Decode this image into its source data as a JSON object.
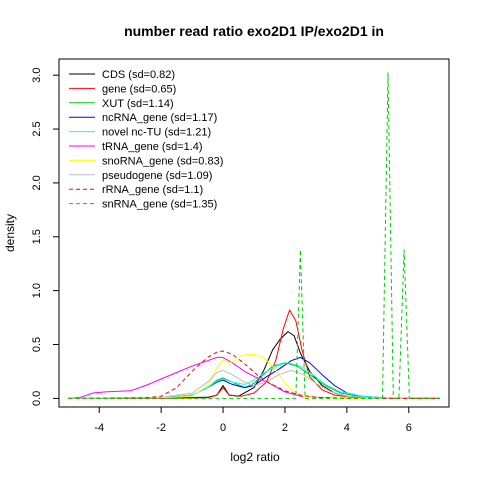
{
  "chart_data": {
    "type": "line",
    "title": "number read ratio exo2D1 IP/exo2D1 in",
    "xlabel": "log2 ratio",
    "ylabel": "density",
    "xlim": [
      -5.3,
      7.3
    ],
    "ylim": [
      -0.08,
      3.15
    ],
    "x_ticks": [
      -4,
      -2,
      0,
      2,
      4,
      6
    ],
    "x_tick_labels": [
      "-4",
      "-2",
      "0",
      "2",
      "4",
      "6"
    ],
    "y_ticks": [
      0.0,
      0.5,
      1.0,
      1.5,
      2.0,
      2.5,
      3.0
    ],
    "y_tick_labels": [
      "0.0",
      "0.5",
      "1.0",
      "1.5",
      "2.0",
      "2.5",
      "3.0"
    ],
    "grid": false,
    "legend_position": "top-left",
    "series": [
      {
        "name": "CDS (sd=0.82)",
        "color": "#000000",
        "dash": "solid",
        "points": [
          [
            -5,
            0
          ],
          [
            -3,
            0
          ],
          [
            -1.5,
            0.005
          ],
          [
            -0.5,
            0.01
          ],
          [
            -0.2,
            0.03
          ],
          [
            0,
            0.12
          ],
          [
            0.2,
            0.03
          ],
          [
            0.5,
            0.02
          ],
          [
            1,
            0.1
          ],
          [
            1.3,
            0.25
          ],
          [
            1.6,
            0.45
          ],
          [
            1.85,
            0.55
          ],
          [
            2.1,
            0.62
          ],
          [
            2.3,
            0.58
          ],
          [
            2.5,
            0.42
          ],
          [
            2.8,
            0.25
          ],
          [
            3.2,
            0.12
          ],
          [
            3.6,
            0.05
          ],
          [
            4,
            0.02
          ],
          [
            5,
            0
          ],
          [
            7,
            0
          ]
        ]
      },
      {
        "name": "gene (sd=0.65)",
        "color": "#ff0000",
        "dash": "solid",
        "points": [
          [
            -5,
            0
          ],
          [
            -2,
            0
          ],
          [
            -0.5,
            0.005
          ],
          [
            -0.2,
            0.03
          ],
          [
            0,
            0.1
          ],
          [
            0.2,
            0.03
          ],
          [
            0.6,
            0.02
          ],
          [
            1,
            0.05
          ],
          [
            1.4,
            0.15
          ],
          [
            1.7,
            0.35
          ],
          [
            1.95,
            0.65
          ],
          [
            2.15,
            0.82
          ],
          [
            2.35,
            0.72
          ],
          [
            2.55,
            0.45
          ],
          [
            2.8,
            0.2
          ],
          [
            3.2,
            0.08
          ],
          [
            3.6,
            0.03
          ],
          [
            4.2,
            0.01
          ],
          [
            5,
            0
          ],
          [
            7,
            0
          ]
        ]
      },
      {
        "name": "XUT (sd=1.14)",
        "color": "#00cd00",
        "dash": "solid",
        "points": [
          [
            -5,
            0
          ],
          [
            -2,
            0.005
          ],
          [
            -1,
            0.03
          ],
          [
            -0.5,
            0.1
          ],
          [
            -0.2,
            0.17
          ],
          [
            0,
            0.19
          ],
          [
            0.3,
            0.15
          ],
          [
            0.7,
            0.1
          ],
          [
            1,
            0.14
          ],
          [
            1.3,
            0.22
          ],
          [
            1.6,
            0.3
          ],
          [
            2,
            0.33
          ],
          [
            2.4,
            0.3
          ],
          [
            2.8,
            0.22
          ],
          [
            3.3,
            0.12
          ],
          [
            3.8,
            0.05
          ],
          [
            4.5,
            0.01
          ],
          [
            5.5,
            0
          ],
          [
            7,
            0
          ]
        ]
      },
      {
        "name": "ncRNA_gene (sd=1.17)",
        "color": "#0000ff",
        "dash": "solid",
        "points": [
          [
            -5,
            0
          ],
          [
            -2,
            0.005
          ],
          [
            -1,
            0.03
          ],
          [
            -0.5,
            0.1
          ],
          [
            -0.2,
            0.15
          ],
          [
            0,
            0.17
          ],
          [
            0.3,
            0.13
          ],
          [
            0.7,
            0.1
          ],
          [
            1,
            0.12
          ],
          [
            1.4,
            0.2
          ],
          [
            1.8,
            0.27
          ],
          [
            2.2,
            0.35
          ],
          [
            2.5,
            0.38
          ],
          [
            2.8,
            0.33
          ],
          [
            3.2,
            0.22
          ],
          [
            3.6,
            0.12
          ],
          [
            4,
            0.05
          ],
          [
            4.5,
            0.02
          ],
          [
            5.5,
            0
          ],
          [
            7,
            0
          ]
        ]
      },
      {
        "name": "novel nc-TU (sd=1.21)",
        "color": "#00ffff",
        "dash": "solid",
        "points": [
          [
            -5,
            0
          ],
          [
            -2,
            0.005
          ],
          [
            -1,
            0.03
          ],
          [
            -0.5,
            0.1
          ],
          [
            -0.2,
            0.16
          ],
          [
            0,
            0.18
          ],
          [
            0.3,
            0.15
          ],
          [
            0.7,
            0.13
          ],
          [
            1,
            0.17
          ],
          [
            1.4,
            0.25
          ],
          [
            1.8,
            0.31
          ],
          [
            2.1,
            0.33
          ],
          [
            2.5,
            0.3
          ],
          [
            2.9,
            0.22
          ],
          [
            3.3,
            0.13
          ],
          [
            3.8,
            0.06
          ],
          [
            4.5,
            0.02
          ],
          [
            5.5,
            0
          ],
          [
            7,
            0
          ]
        ]
      },
      {
        "name": "tRNA_gene (sd=1.4)",
        "color": "#ff00ff",
        "dash": "solid",
        "points": [
          [
            -5,
            0
          ],
          [
            -4.6,
            0.01
          ],
          [
            -4.2,
            0.05
          ],
          [
            -3.8,
            0.06
          ],
          [
            -3,
            0.07
          ],
          [
            -2.5,
            0.12
          ],
          [
            -2,
            0.18
          ],
          [
            -1.5,
            0.24
          ],
          [
            -1,
            0.3
          ],
          [
            -0.5,
            0.35
          ],
          [
            -0.2,
            0.38
          ],
          [
            0,
            0.38
          ],
          [
            0.3,
            0.33
          ],
          [
            0.7,
            0.25
          ],
          [
            1.1,
            0.19
          ],
          [
            1.5,
            0.14
          ],
          [
            2,
            0.06
          ],
          [
            2.5,
            0.02
          ],
          [
            3,
            0.01
          ],
          [
            4,
            0
          ],
          [
            7,
            0
          ]
        ]
      },
      {
        "name": "snoRNA_gene (sd=0.83)",
        "color": "#ffff00",
        "dash": "solid",
        "points": [
          [
            -5,
            0
          ],
          [
            -2,
            0.005
          ],
          [
            -1,
            0.02
          ],
          [
            -0.5,
            0.12
          ],
          [
            -0.2,
            0.28
          ],
          [
            0,
            0.36
          ],
          [
            0.2,
            0.33
          ],
          [
            0.4,
            0.35
          ],
          [
            0.6,
            0.4
          ],
          [
            1,
            0.41
          ],
          [
            1.3,
            0.38
          ],
          [
            1.6,
            0.3
          ],
          [
            1.9,
            0.18
          ],
          [
            2.2,
            0.08
          ],
          [
            2.6,
            0.02
          ],
          [
            3,
            0.005
          ],
          [
            4,
            0
          ],
          [
            7,
            0
          ]
        ]
      },
      {
        "name": "pseudogene (sd=1.09)",
        "color": "#bebebe",
        "dash": "solid",
        "points": [
          [
            -5,
            0
          ],
          [
            -2,
            0.01
          ],
          [
            -1,
            0.05
          ],
          [
            -0.5,
            0.15
          ],
          [
            -0.2,
            0.24
          ],
          [
            0,
            0.26
          ],
          [
            0.3,
            0.22
          ],
          [
            0.7,
            0.15
          ],
          [
            1,
            0.12
          ],
          [
            1.4,
            0.15
          ],
          [
            1.8,
            0.22
          ],
          [
            2.2,
            0.26
          ],
          [
            2.6,
            0.22
          ],
          [
            3,
            0.14
          ],
          [
            3.5,
            0.06
          ],
          [
            4,
            0.02
          ],
          [
            5,
            0
          ],
          [
            7,
            0
          ]
        ]
      },
      {
        "name": "rRNA_gene (sd=1.1)",
        "color": "#ff0000",
        "dash": "dashed",
        "points": [
          [
            -5,
            0
          ],
          [
            -2.5,
            0.005
          ],
          [
            -2,
            0.02
          ],
          [
            -1.5,
            0.1
          ],
          [
            -1,
            0.25
          ],
          [
            -0.5,
            0.38
          ],
          [
            -0.2,
            0.43
          ],
          [
            0,
            0.44
          ],
          [
            0.3,
            0.41
          ],
          [
            0.7,
            0.32
          ],
          [
            1.1,
            0.22
          ],
          [
            1.5,
            0.14
          ],
          [
            2,
            0.07
          ],
          [
            2.5,
            0.03
          ],
          [
            3,
            0.01
          ],
          [
            4,
            0
          ],
          [
            7,
            0
          ]
        ]
      },
      {
        "name": "snRNA_gene (sd=1.35)",
        "color": "#00cd00",
        "dash": "dashed",
        "points": [
          [
            -5,
            0
          ],
          [
            1.5,
            0
          ],
          [
            2.0,
            0
          ],
          [
            2.35,
            0
          ],
          [
            2.5,
            1.38
          ],
          [
            2.65,
            0
          ],
          [
            3,
            0
          ],
          [
            5.15,
            0
          ],
          [
            5.33,
            3.02
          ],
          [
            5.5,
            0
          ],
          [
            5.68,
            0
          ],
          [
            5.85,
            1.38
          ],
          [
            6.02,
            0
          ],
          [
            7,
            0
          ]
        ]
      }
    ]
  }
}
